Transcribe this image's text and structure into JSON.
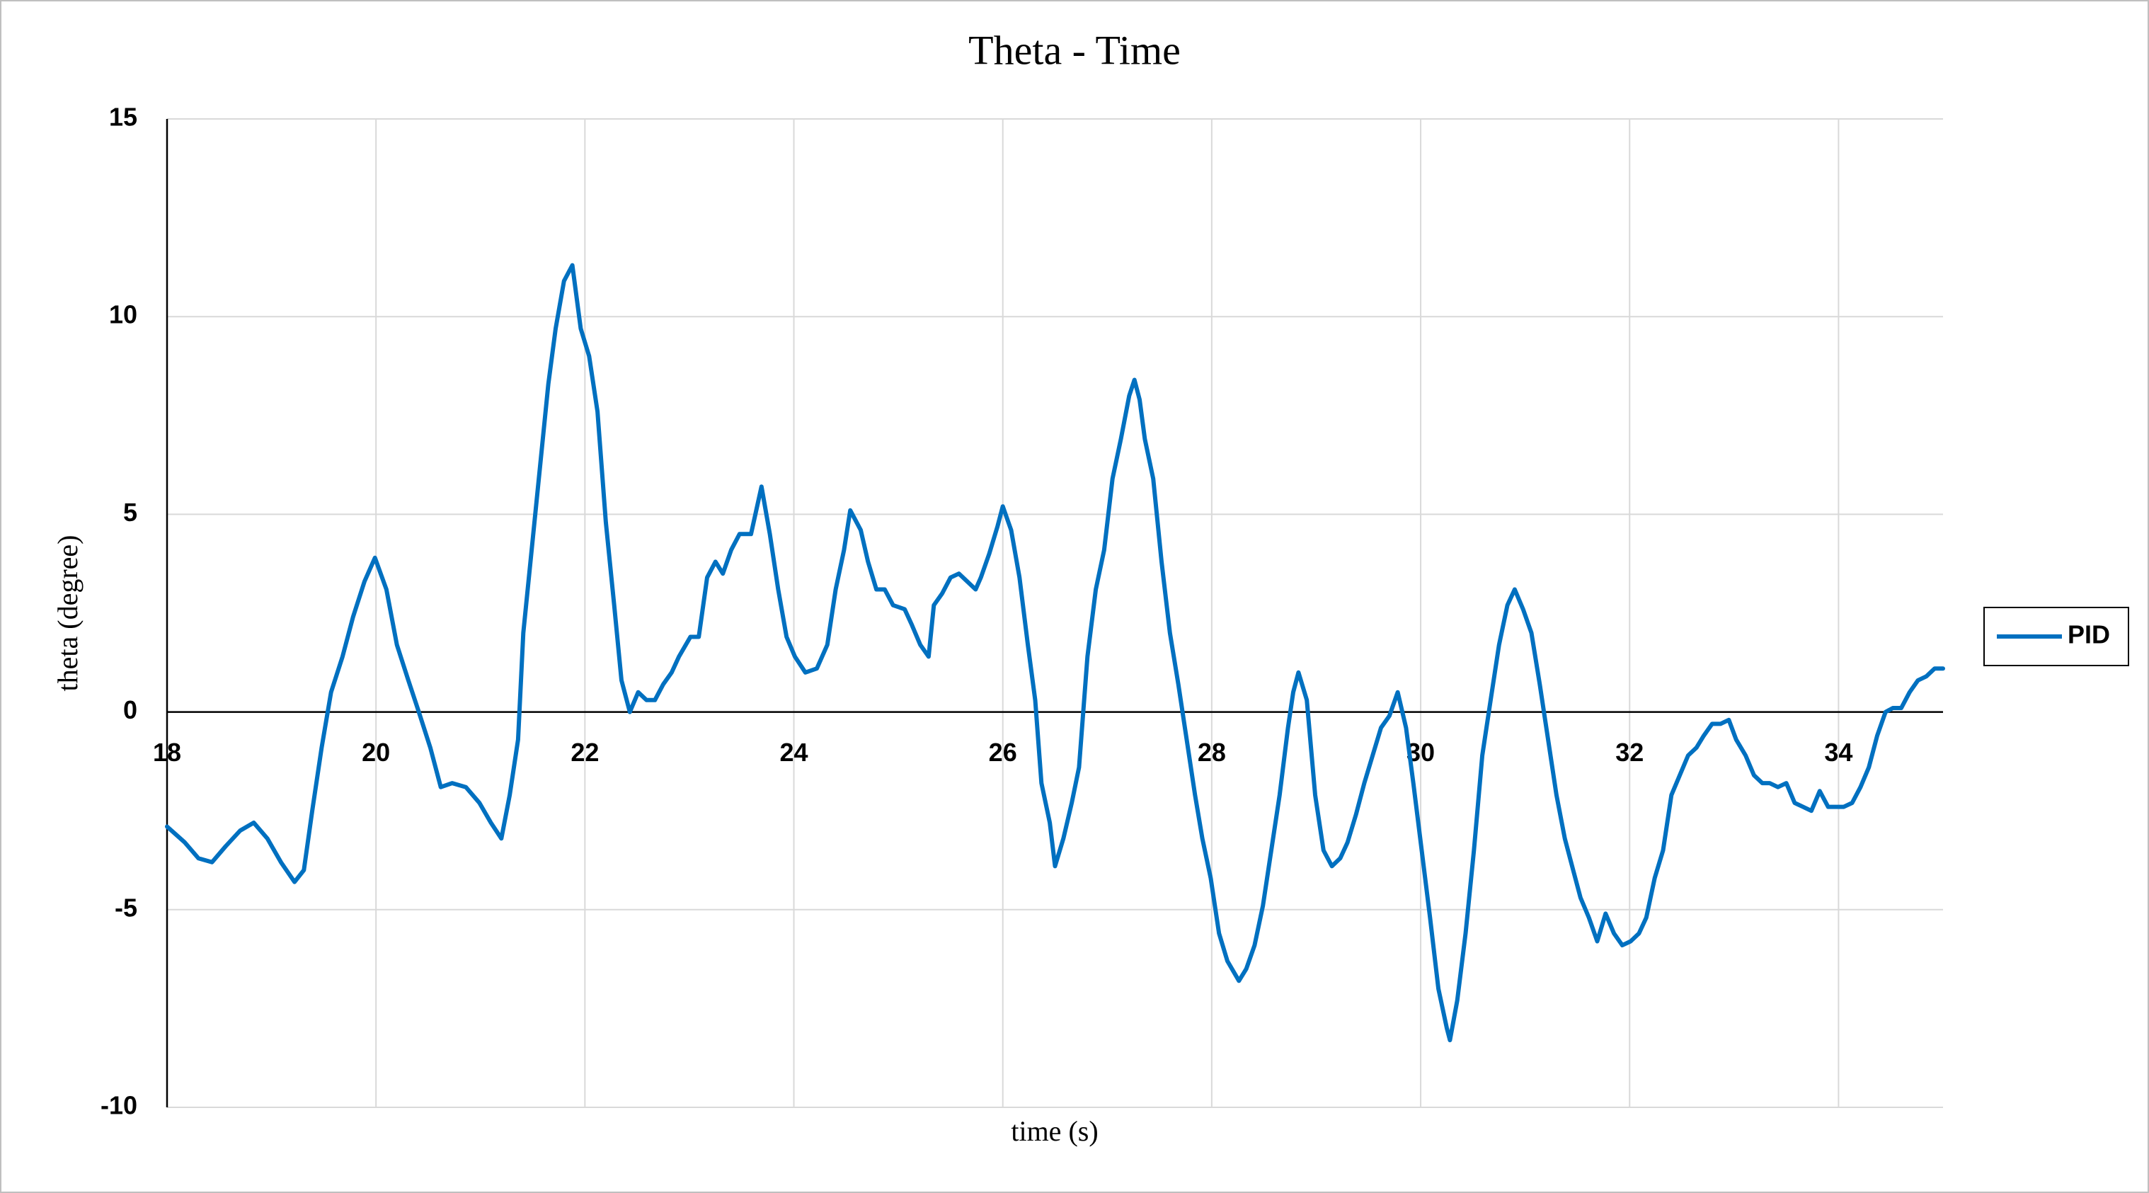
{
  "chart_data": {
    "type": "line",
    "title": "Theta - Time",
    "x_label": "time (s)",
    "y_label": "theta (degree)",
    "x": [
      18.0,
      18.17,
      18.3,
      18.43,
      18.56,
      18.7,
      18.83,
      18.96,
      19.09,
      19.22,
      19.31,
      19.39,
      19.48,
      19.57,
      19.68,
      19.78,
      19.89,
      19.99,
      20.1,
      20.2,
      20.31,
      20.41,
      20.52,
      20.62,
      20.73,
      20.86,
      20.99,
      21.1,
      21.2,
      21.28,
      21.36,
      21.41,
      21.49,
      21.57,
      21.65,
      21.72,
      21.8,
      21.88,
      21.96,
      22.04,
      22.12,
      22.2,
      22.28,
      22.35,
      22.43,
      22.51,
      22.59,
      22.67,
      22.75,
      22.83,
      22.9,
      23.01,
      23.09,
      23.17,
      23.25,
      23.32,
      23.4,
      23.48,
      23.59,
      23.69,
      23.77,
      23.85,
      23.93,
      24.01,
      24.11,
      24.22,
      24.32,
      24.4,
      24.48,
      24.54,
      24.64,
      24.71,
      24.79,
      24.87,
      24.95,
      25.06,
      25.13,
      25.21,
      25.29,
      25.34,
      25.42,
      25.5,
      25.58,
      25.66,
      25.74,
      25.79,
      25.87,
      25.95,
      26.0,
      26.08,
      26.16,
      26.24,
      26.31,
      26.37,
      26.45,
      26.5,
      26.58,
      26.66,
      26.73,
      26.81,
      26.89,
      26.97,
      27.05,
      27.13,
      27.21,
      27.26,
      27.31,
      27.36,
      27.44,
      27.52,
      27.6,
      27.68,
      27.76,
      27.84,
      27.91,
      27.99,
      28.07,
      28.15,
      28.26,
      28.33,
      28.41,
      28.49,
      28.57,
      28.65,
      28.73,
      28.78,
      28.83,
      28.91,
      28.99,
      29.07,
      29.15,
      29.23,
      29.3,
      29.38,
      29.46,
      29.54,
      29.62,
      29.7,
      29.78,
      29.86,
      29.93,
      30.01,
      30.09,
      30.17,
      30.25,
      30.28,
      30.35,
      30.43,
      30.51,
      30.59,
      30.67,
      30.75,
      30.83,
      30.9,
      30.98,
      31.06,
      31.14,
      31.22,
      31.3,
      31.38,
      31.46,
      31.53,
      31.61,
      31.69,
      31.77,
      31.85,
      31.93,
      32.01,
      32.09,
      32.16,
      32.24,
      32.32,
      32.4,
      32.48,
      32.56,
      32.64,
      32.71,
      32.79,
      32.87,
      32.95,
      33.02,
      33.11,
      33.19,
      33.27,
      33.34,
      33.42,
      33.5,
      33.58,
      33.66,
      33.74,
      33.82,
      33.9,
      33.97,
      34.05,
      34.13,
      34.21,
      34.29,
      34.37,
      34.45,
      34.52,
      34.6,
      34.68,
      34.76,
      34.84,
      34.92,
      35.0
    ],
    "series": [
      {
        "name": "PID",
        "color": "#0070c0",
        "values": [
          -2.9,
          -3.3,
          -3.7,
          -3.8,
          -3.4,
          -3.0,
          -2.8,
          -3.2,
          -3.8,
          -4.3,
          -4.0,
          -2.5,
          -0.9,
          0.5,
          1.4,
          2.4,
          3.3,
          3.9,
          3.1,
          1.7,
          0.8,
          0.0,
          -0.9,
          -1.9,
          -1.8,
          -1.9,
          -2.3,
          -2.8,
          -3.2,
          -2.1,
          -0.7,
          2.0,
          4.1,
          6.2,
          8.3,
          9.7,
          10.9,
          11.3,
          9.7,
          9.0,
          7.6,
          4.8,
          2.7,
          0.8,
          0.0,
          0.5,
          0.3,
          0.3,
          0.7,
          1.0,
          1.4,
          1.9,
          1.9,
          3.4,
          3.8,
          3.5,
          4.1,
          4.5,
          4.5,
          5.7,
          4.5,
          3.1,
          1.9,
          1.4,
          1.0,
          1.1,
          1.7,
          3.1,
          4.1,
          5.1,
          4.6,
          3.8,
          3.1,
          3.1,
          2.7,
          2.6,
          2.2,
          1.7,
          1.4,
          2.7,
          3.0,
          3.4,
          3.5,
          3.3,
          3.1,
          3.4,
          4.0,
          4.7,
          5.2,
          4.6,
          3.4,
          1.7,
          0.3,
          -1.8,
          -2.8,
          -3.9,
          -3.2,
          -2.3,
          -1.4,
          1.4,
          3.1,
          4.1,
          5.9,
          6.9,
          8.0,
          8.4,
          7.9,
          6.9,
          5.9,
          3.8,
          2.0,
          0.7,
          -0.7,
          -2.1,
          -3.2,
          -4.2,
          -5.6,
          -6.3,
          -6.8,
          -6.5,
          -5.9,
          -4.9,
          -3.5,
          -2.1,
          -0.4,
          0.5,
          1.0,
          0.3,
          -2.1,
          -3.5,
          -3.9,
          -3.7,
          -3.3,
          -2.6,
          -1.8,
          -1.1,
          -0.4,
          -0.1,
          0.5,
          -0.4,
          -1.8,
          -3.5,
          -5.2,
          -7.0,
          -8.0,
          -8.3,
          -7.3,
          -5.6,
          -3.5,
          -1.1,
          0.3,
          1.7,
          2.7,
          3.1,
          2.6,
          2.0,
          0.7,
          -0.7,
          -2.1,
          -3.2,
          -4.0,
          -4.7,
          -5.2,
          -5.8,
          -5.1,
          -5.6,
          -5.9,
          -5.8,
          -5.6,
          -5.2,
          -4.2,
          -3.5,
          -2.1,
          -1.6,
          -1.1,
          -0.9,
          -0.6,
          -0.3,
          -0.3,
          -0.2,
          -0.7,
          -1.1,
          -1.6,
          -1.8,
          -1.8,
          -1.9,
          -1.8,
          -2.3,
          -2.4,
          -2.5,
          -2.0,
          -2.4,
          -2.4,
          -2.4,
          -2.3,
          -1.9,
          -1.4,
          -0.6,
          0.0,
          0.1,
          0.1,
          0.5,
          0.8,
          0.9,
          1.1,
          1.1
        ]
      }
    ],
    "xlim": [
      18,
      35
    ],
    "xticks": [
      18,
      20,
      22,
      24,
      26,
      28,
      30,
      32,
      34
    ],
    "ylim": [
      -10,
      15
    ],
    "yticks": [
      -10,
      -5,
      0,
      5,
      10,
      15
    ],
    "grid": true,
    "legend": "right"
  }
}
